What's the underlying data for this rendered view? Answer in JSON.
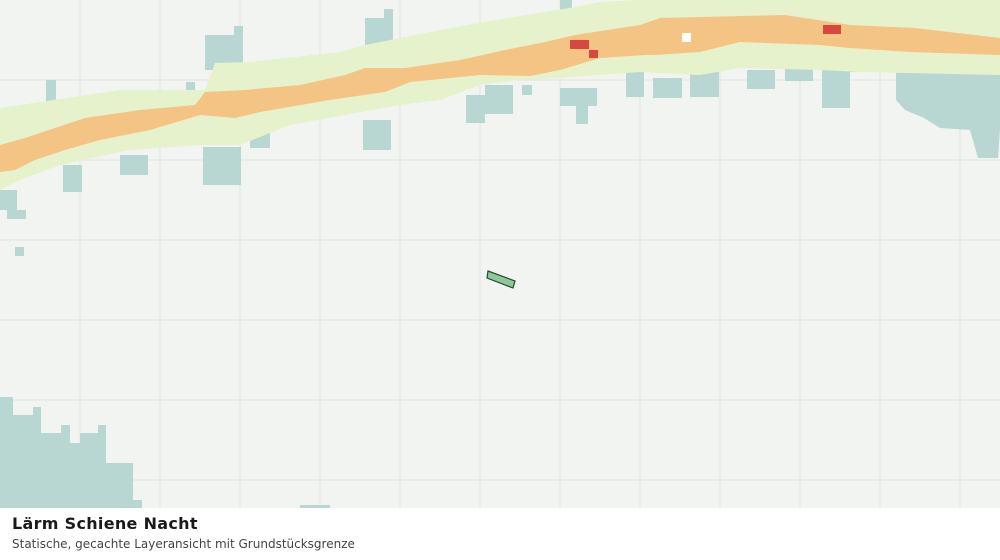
{
  "caption": {
    "title": "Lärm Schiene Nacht",
    "subtitle": "Statische, gecachte Layeransicht mit Grundstücksgrenze"
  }
}
